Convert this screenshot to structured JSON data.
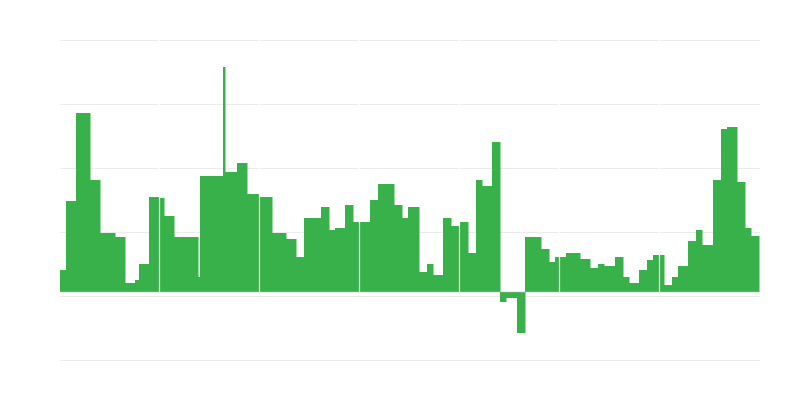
{
  "chart_data": {
    "type": "bar",
    "title": "",
    "xlabel": "",
    "ylabel": "",
    "xlim": [
      0,
      700
    ],
    "ylim": [
      -68,
      252
    ],
    "grid": true,
    "grid_values": [
      256,
      192,
      128,
      64,
      0,
      -64
    ],
    "separators": [
      99,
      199,
      299,
      399,
      499,
      599
    ],
    "bar_color": "#38b14a",
    "grid_color": "#ebebeb",
    "bars": [
      [
        0,
        6,
        22
      ],
      [
        6,
        16,
        91
      ],
      [
        16,
        30,
        179
      ],
      [
        30,
        40,
        112
      ],
      [
        40,
        55,
        59
      ],
      [
        55,
        65,
        55
      ],
      [
        65,
        75,
        9
      ],
      [
        75,
        79,
        12
      ],
      [
        79,
        89,
        28
      ],
      [
        89,
        99,
        95
      ],
      [
        100,
        104,
        94
      ],
      [
        104,
        114,
        76
      ],
      [
        114,
        138,
        55
      ],
      [
        138,
        140,
        15
      ],
      [
        140,
        163,
        116
      ],
      [
        163,
        165,
        225
      ],
      [
        165,
        177,
        120
      ],
      [
        177,
        187,
        129
      ],
      [
        187,
        199,
        98
      ],
      [
        200,
        212,
        95
      ],
      [
        212,
        226,
        59
      ],
      [
        226,
        236,
        53
      ],
      [
        236,
        244,
        35
      ],
      [
        244,
        261,
        74
      ],
      [
        261,
        269,
        85
      ],
      [
        269,
        275,
        62
      ],
      [
        275,
        285,
        64
      ],
      [
        285,
        293,
        87
      ],
      [
        293,
        299,
        70
      ],
      [
        300,
        310,
        70
      ],
      [
        310,
        318,
        92
      ],
      [
        318,
        334,
        108
      ],
      [
        334,
        342,
        87
      ],
      [
        342,
        348,
        74
      ],
      [
        348,
        359,
        85
      ],
      [
        359,
        367,
        20
      ],
      [
        367,
        373,
        28
      ],
      [
        373,
        383,
        17
      ],
      [
        383,
        391,
        74
      ],
      [
        391,
        399,
        66
      ],
      [
        400,
        408,
        70
      ],
      [
        408,
        416,
        39
      ],
      [
        416,
        422,
        112
      ],
      [
        422,
        432,
        106
      ],
      [
        432,
        440,
        150
      ],
      [
        440,
        446,
        -10
      ],
      [
        446,
        457,
        -6
      ],
      [
        457,
        465,
        -41
      ],
      [
        465,
        481,
        55
      ],
      [
        481,
        489,
        43
      ],
      [
        489,
        495,
        30
      ],
      [
        495,
        499,
        35
      ],
      [
        500,
        506,
        35
      ],
      [
        506,
        520,
        39
      ],
      [
        520,
        530,
        33
      ],
      [
        530,
        538,
        24
      ],
      [
        538,
        544,
        28
      ],
      [
        544,
        555,
        26
      ],
      [
        555,
        563,
        35
      ],
      [
        563,
        569,
        15
      ],
      [
        569,
        579,
        9
      ],
      [
        579,
        587,
        22
      ],
      [
        587,
        593,
        32
      ],
      [
        593,
        599,
        37
      ],
      [
        600,
        604,
        37
      ],
      [
        604,
        612,
        7
      ],
      [
        612,
        618,
        15
      ],
      [
        618,
        628,
        26
      ],
      [
        628,
        636,
        51
      ],
      [
        636,
        642,
        62
      ],
      [
        642,
        653,
        47
      ],
      [
        653,
        661,
        112
      ],
      [
        661,
        667,
        163
      ],
      [
        667,
        677,
        165
      ],
      [
        677,
        685,
        110
      ],
      [
        685,
        691,
        64
      ],
      [
        691,
        699,
        56
      ]
    ]
  }
}
